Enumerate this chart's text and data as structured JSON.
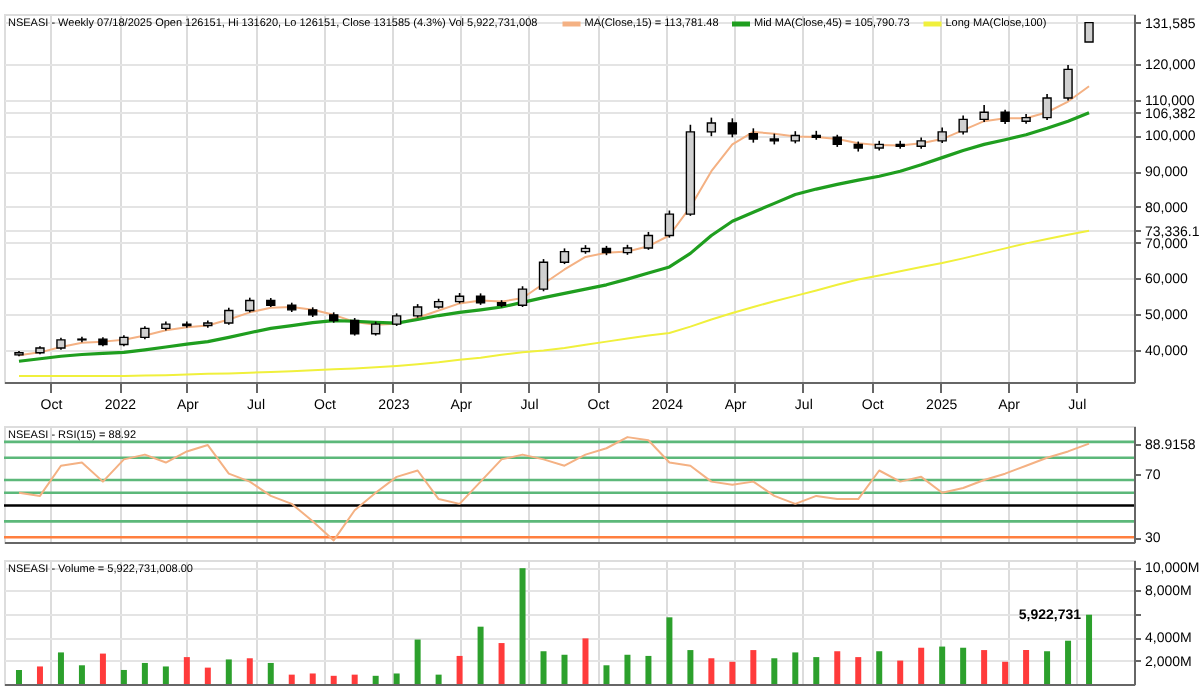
{
  "chart_data": [
    {
      "type": "candlestick",
      "title": "NSEASI - Weekly 07/18/2025 Open 126151, Hi 131620, Lo 126151, Close 131585 (4.3%) Vol 5,922,731,008",
      "x": [
        "2021-08-20",
        "2021-09-17",
        "2021-10-15",
        "2021-11-12",
        "2021-12-10",
        "2022-01-07",
        "2022-02-04",
        "2022-03-04",
        "2022-04-01",
        "2022-04-29",
        "2022-05-27",
        "2022-06-24",
        "2022-07-22",
        "2022-08-19",
        "2022-09-16",
        "2022-10-14",
        "2022-11-11",
        "2022-12-09",
        "2023-01-06",
        "2023-02-03",
        "2023-03-03",
        "2023-03-31",
        "2023-04-28",
        "2023-05-26",
        "2023-06-23",
        "2023-07-21",
        "2023-08-18",
        "2023-09-15",
        "2023-10-13",
        "2023-11-10",
        "2023-12-08",
        "2024-01-05",
        "2024-02-02",
        "2024-03-01",
        "2024-03-29",
        "2024-04-26",
        "2024-05-24",
        "2024-06-21",
        "2024-07-19",
        "2024-08-16",
        "2024-09-13",
        "2024-10-11",
        "2024-11-08",
        "2024-12-06",
        "2025-01-03",
        "2025-01-31",
        "2025-02-28",
        "2025-03-28",
        "2025-04-25",
        "2025-05-23",
        "2025-06-20",
        "2025-07-18"
      ],
      "ohlc": [
        [
          38600,
          39700,
          38200,
          39200
        ],
        [
          39200,
          41000,
          38800,
          40500
        ],
        [
          40500,
          43400,
          40000,
          42800
        ],
        [
          42800,
          43700,
          42100,
          43000
        ],
        [
          43000,
          43500,
          41000,
          41500
        ],
        [
          41500,
          44100,
          41000,
          43500
        ],
        [
          43500,
          46600,
          43000,
          46000
        ],
        [
          46000,
          47900,
          45400,
          47200
        ],
        [
          47200,
          47900,
          46200,
          46800
        ],
        [
          46800,
          48200,
          46200,
          47500
        ],
        [
          47500,
          51800,
          47000,
          51000
        ],
        [
          51000,
          54600,
          50500,
          53800
        ],
        [
          53800,
          54500,
          52000,
          52500
        ],
        [
          52500,
          53200,
          50600,
          51200
        ],
        [
          51200,
          51900,
          49200,
          49800
        ],
        [
          49800,
          50500,
          47600,
          48200
        ],
        [
          48200,
          48900,
          44000,
          44500
        ],
        [
          44500,
          47900,
          44000,
          47200
        ],
        [
          47200,
          50200,
          46700,
          49500
        ],
        [
          49500,
          52800,
          49000,
          52000
        ],
        [
          52000,
          54300,
          51500,
          53500
        ],
        [
          53500,
          55900,
          53000,
          55000
        ],
        [
          55000,
          55800,
          52600,
          53200
        ],
        [
          53200,
          53900,
          51900,
          52500
        ],
        [
          52500,
          57800,
          52000,
          57000
        ],
        [
          57000,
          65400,
          56400,
          64500
        ],
        [
          64500,
          68400,
          64000,
          67500
        ],
        [
          67500,
          69300,
          66900,
          68400
        ],
        [
          68400,
          69100,
          66500,
          67200
        ],
        [
          67200,
          69400,
          66600,
          68500
        ],
        [
          68500,
          73000,
          68000,
          72000
        ],
        [
          72000,
          79000,
          71400,
          78000
        ],
        [
          78000,
          103000,
          77500,
          101000
        ],
        [
          101000,
          105000,
          99800,
          103500
        ],
        [
          103500,
          104800,
          99500,
          100500
        ],
        [
          100500,
          102000,
          98000,
          99000
        ],
        [
          99000,
          100500,
          97500,
          98500
        ],
        [
          98500,
          101200,
          97800,
          100000
        ],
        [
          100000,
          101300,
          98800,
          99500
        ],
        [
          99500,
          100200,
          96800,
          97500
        ],
        [
          97500,
          98300,
          95500,
          96500
        ],
        [
          96500,
          98500,
          95800,
          97500
        ],
        [
          97500,
          98500,
          96300,
          97000
        ],
        [
          97000,
          99400,
          96300,
          98500
        ],
        [
          98500,
          102200,
          97900,
          101000
        ],
        [
          101000,
          105600,
          100300,
          104500
        ],
        [
          104500,
          108500,
          103800,
          106500
        ],
        [
          106500,
          107200,
          103200,
          104000
        ],
        [
          104000,
          106000,
          103300,
          105000
        ],
        [
          105000,
          111600,
          104300,
          110500
        ],
        [
          110500,
          119700,
          109800,
          118500
        ],
        [
          126151,
          131620,
          126151,
          131585
        ]
      ],
      "series": [
        {
          "name": "MA(Close,15) = 113,781.48",
          "type": "line",
          "color": "#f4b183",
          "values": [
            38500,
            39300,
            40800,
            42000,
            42300,
            42800,
            44000,
            45500,
            46300,
            46800,
            48500,
            50500,
            51800,
            52000,
            51200,
            49800,
            47800,
            47000,
            47300,
            49000,
            51000,
            53000,
            53800,
            53500,
            54500,
            58500,
            62500,
            66000,
            67200,
            67500,
            69000,
            72000,
            80000,
            90000,
            97500,
            101000,
            100500,
            99700,
            99600,
            99000,
            97800,
            97300,
            97200,
            97800,
            99000,
            101500,
            104000,
            104800,
            104800,
            106500,
            109500,
            113781.48
          ]
        },
        {
          "name": "Mid MA(Close,45) = 105,790.73",
          "type": "line",
          "color": "#1f9e1f",
          "values": [
            36800,
            37500,
            38200,
            38700,
            39000,
            39300,
            40000,
            40800,
            41600,
            42300,
            43500,
            44800,
            46000,
            46800,
            47600,
            48200,
            48000,
            47700,
            47500,
            48500,
            49600,
            50500,
            51200,
            52000,
            53300,
            54600,
            55800,
            57000,
            58200,
            59800,
            61500,
            63200,
            67000,
            72000,
            76000,
            78500,
            81000,
            83500,
            85000,
            86300,
            87500,
            88600,
            90000,
            91800,
            93800,
            95800,
            97500,
            98800,
            100200,
            102000,
            104000,
            106382
          ]
        },
        {
          "name": "Long MA(Close,100)",
          "type": "line",
          "color": "#f0f03c",
          "values": [
            32700,
            32700,
            32700,
            32700,
            32700,
            32700,
            32800,
            32900,
            33100,
            33300,
            33400,
            33600,
            33800,
            34000,
            34300,
            34600,
            34800,
            35100,
            35500,
            36000,
            36500,
            37200,
            37800,
            38600,
            39300,
            39800,
            40500,
            41400,
            42300,
            43200,
            44000,
            44700,
            46500,
            48500,
            50300,
            52000,
            53600,
            55100,
            56600,
            58200,
            59700,
            60800,
            62000,
            63200,
            64300,
            65600,
            67000,
            68400,
            69800,
            71000,
            72200,
            73336.1
          ]
        }
      ],
      "xlim": [
        "2021-07-31",
        "2025-09-16"
      ],
      "xticks": [
        {
          "value": "2021-10-01",
          "label": "Oct"
        },
        {
          "value": "2022-01-01",
          "label": "2022"
        },
        {
          "value": "2022-04-01",
          "label": "Apr"
        },
        {
          "value": "2022-07-01",
          "label": "Jul"
        },
        {
          "value": "2022-10-01",
          "label": "Oct"
        },
        {
          "value": "2023-01-01",
          "label": "2023"
        },
        {
          "value": "2023-04-01",
          "label": "Apr"
        },
        {
          "value": "2023-07-01",
          "label": "Jul"
        },
        {
          "value": "2023-10-01",
          "label": "Oct"
        },
        {
          "value": "2024-01-01",
          "label": "2024"
        },
        {
          "value": "2024-04-01",
          "label": "Apr"
        },
        {
          "value": "2024-07-01",
          "label": "Jul"
        },
        {
          "value": "2024-10-01",
          "label": "Oct"
        },
        {
          "value": "2025-01-01",
          "label": "2025"
        },
        {
          "value": "2025-04-01",
          "label": "Apr"
        },
        {
          "value": "2025-07-01",
          "label": "Jul"
        }
      ],
      "ylim": [
        31000,
        134000
      ],
      "yticks": [
        {
          "value": 40000,
          "label": "40,000"
        },
        {
          "value": 50000,
          "label": "50,000"
        },
        {
          "value": 60000,
          "label": "60,000"
        },
        {
          "value": 70000,
          "label": "70,000"
        },
        {
          "value": 73336.1,
          "label": "73,336.1"
        },
        {
          "value": 80000,
          "label": "80,000"
        },
        {
          "value": 90000,
          "label": "90,000"
        },
        {
          "value": 100000,
          "label": "100,000"
        },
        {
          "value": 106382,
          "label": "106,382"
        },
        {
          "value": 110000,
          "label": "110,000"
        },
        {
          "value": 120000,
          "label": "120,000"
        },
        {
          "value": 131585,
          "label": "131,585"
        }
      ],
      "grid": true,
      "legend": "top"
    },
    {
      "type": "line",
      "title": "NSEASI - RSI(15) = 88.92",
      "x": [
        "2021-08-20",
        "2021-09-17",
        "2021-10-15",
        "2021-11-12",
        "2021-12-10",
        "2022-01-07",
        "2022-02-04",
        "2022-03-04",
        "2022-04-01",
        "2022-04-29",
        "2022-05-27",
        "2022-06-24",
        "2022-07-22",
        "2022-08-19",
        "2022-09-16",
        "2022-10-14",
        "2022-11-11",
        "2022-12-09",
        "2023-01-06",
        "2023-02-03",
        "2023-03-03",
        "2023-03-31",
        "2023-04-28",
        "2023-05-26",
        "2023-06-23",
        "2023-07-21",
        "2023-08-18",
        "2023-09-15",
        "2023-10-13",
        "2023-11-10",
        "2023-12-08",
        "2024-01-05",
        "2024-02-02",
        "2024-03-01",
        "2024-03-29",
        "2024-04-26",
        "2024-05-24",
        "2024-06-21",
        "2024-07-19",
        "2024-08-16",
        "2024-09-13",
        "2024-10-11",
        "2024-11-08",
        "2024-12-06",
        "2025-01-03",
        "2025-01-31",
        "2025-02-28",
        "2025-03-28",
        "2025-04-25",
        "2025-05-23",
        "2025-06-20",
        "2025-07-18"
      ],
      "series": [
        {
          "color": "#f4b183",
          "values": [
            58,
            56,
            75,
            77,
            65,
            79,
            82,
            77,
            84,
            88,
            70,
            65,
            56,
            51,
            40,
            28,
            47,
            58,
            68,
            72,
            54,
            51,
            65,
            79,
            82,
            79,
            75,
            82,
            86,
            93,
            91,
            77,
            75,
            65,
            63,
            65,
            56,
            51,
            56,
            54,
            54,
            72,
            65,
            68,
            58,
            61,
            66,
            70,
            75,
            80,
            84,
            88.9158
          ]
        }
      ],
      "xlim": [
        "2021-07-31",
        "2025-09-16"
      ],
      "xticks": [
        {
          "value": "2021-10-01",
          "label": null
        },
        {
          "value": "2022-01-01",
          "label": null
        },
        {
          "value": "2022-04-01",
          "label": null
        },
        {
          "value": "2022-07-01",
          "label": null
        },
        {
          "value": "2022-10-01",
          "label": null
        },
        {
          "value": "2023-01-01",
          "label": null
        },
        {
          "value": "2023-04-01",
          "label": null
        },
        {
          "value": "2023-07-01",
          "label": null
        },
        {
          "value": "2023-10-01",
          "label": null
        },
        {
          "value": "2024-01-01",
          "label": null
        },
        {
          "value": "2024-04-01",
          "label": null
        },
        {
          "value": "2024-07-01",
          "label": null
        },
        {
          "value": "2024-10-01",
          "label": null
        },
        {
          "value": "2025-01-01",
          "label": null
        },
        {
          "value": "2025-04-01",
          "label": null
        },
        {
          "value": "2025-07-01",
          "label": null
        }
      ],
      "ylim": [
        27,
        100
      ],
      "yticks": [
        30,
        70,
        {
          "value": 88.9158,
          "label": "88.9158"
        }
      ],
      "grid": "x",
      "tick_labels": "y",
      "ref_lines": [
        {
          "axis": "y",
          "value": 90,
          "color": "#5cb87a"
        },
        {
          "axis": "y",
          "value": 80,
          "color": "#5cb87a"
        },
        {
          "axis": "y",
          "value": 66,
          "color": "#5cb87a"
        },
        {
          "axis": "y",
          "value": 58,
          "color": "#5cb87a"
        },
        {
          "axis": "y",
          "value": 50,
          "color": "#000000"
        },
        {
          "axis": "y",
          "value": 40,
          "color": "#5cb87a"
        },
        {
          "axis": "y",
          "value": 30,
          "color": "#ff7f3f"
        }
      ]
    },
    {
      "type": "bar",
      "title": "NSEASI - Volume = 5,922,731,008.00",
      "x": [
        "2021-08-20",
        "2021-09-17",
        "2021-10-15",
        "2021-11-12",
        "2021-12-10",
        "2022-01-07",
        "2022-02-04",
        "2022-03-04",
        "2022-04-01",
        "2022-04-29",
        "2022-05-27",
        "2022-06-24",
        "2022-07-22",
        "2022-08-19",
        "2022-09-16",
        "2022-10-14",
        "2022-11-11",
        "2022-12-09",
        "2023-01-06",
        "2023-02-03",
        "2023-03-03",
        "2023-03-31",
        "2023-04-28",
        "2023-05-26",
        "2023-06-23",
        "2023-07-21",
        "2023-08-18",
        "2023-09-15",
        "2023-10-13",
        "2023-11-10",
        "2023-12-08",
        "2024-01-05",
        "2024-02-02",
        "2024-03-01",
        "2024-03-29",
        "2024-04-26",
        "2024-05-24",
        "2024-06-21",
        "2024-07-19",
        "2024-08-16",
        "2024-09-13",
        "2024-10-11",
        "2024-11-08",
        "2024-12-06",
        "2025-01-03",
        "2025-01-31",
        "2025-02-28",
        "2025-03-28",
        "2025-04-25",
        "2025-05-23",
        "2025-06-20",
        "2025-07-18"
      ],
      "values": [
        1200,
        1500,
        2700,
        1600,
        2600,
        1200,
        1800,
        1500,
        2300,
        1400,
        2100,
        2200,
        1800,
        800,
        900,
        700,
        800,
        700,
        900,
        3800,
        800,
        2400,
        4900,
        3500,
        9900,
        2800,
        2500,
        3900,
        1600,
        2500,
        2400,
        5700,
        2900,
        2200,
        1900,
        2900,
        2200,
        2700,
        2300,
        2800,
        2300,
        2800,
        2000,
        3100,
        3200,
        3100,
        2900,
        1900,
        2900,
        2800,
        3700,
        5922.731
      ],
      "colors": [
        "#2ca02c",
        "#ff3b3b",
        "#2ca02c",
        "#2ca02c",
        "#ff3b3b",
        "#2ca02c",
        "#2ca02c",
        "#2ca02c",
        "#ff3b3b",
        "#ff3b3b",
        "#2ca02c",
        "#ff3b3b",
        "#2ca02c",
        "#ff3b3b",
        "#ff3b3b",
        "#ff3b3b",
        "#ff3b3b",
        "#2ca02c",
        "#2ca02c",
        "#2ca02c",
        "#2ca02c",
        "#ff3b3b",
        "#2ca02c",
        "#ff3b3b",
        "#2ca02c",
        "#2ca02c",
        "#2ca02c",
        "#ff3b3b",
        "#2ca02c",
        "#2ca02c",
        "#2ca02c",
        "#2ca02c",
        "#2ca02c",
        "#ff3b3b",
        "#ff3b3b",
        "#ff3b3b",
        "#2ca02c",
        "#2ca02c",
        "#2ca02c",
        "#ff3b3b",
        "#ff3b3b",
        "#2ca02c",
        "#ff3b3b",
        "#ff3b3b",
        "#2ca02c",
        "#2ca02c",
        "#ff3b3b",
        "#ff3b3b",
        "#ff3b3b",
        "#2ca02c",
        "#2ca02c",
        "#2ca02c"
      ],
      "xlim": [
        "2021-07-31",
        "2025-09-16"
      ],
      "xticks": [
        {
          "value": "2021-10-01",
          "label": null
        },
        {
          "value": "2022-01-01",
          "label": null
        },
        {
          "value": "2022-04-01",
          "label": null
        },
        {
          "value": "2022-07-01",
          "label": null
        },
        {
          "value": "2022-10-01",
          "label": null
        },
        {
          "value": "2023-01-01",
          "label": null
        },
        {
          "value": "2023-04-01",
          "label": null
        },
        {
          "value": "2023-07-01",
          "label": null
        },
        {
          "value": "2023-10-01",
          "label": null
        },
        {
          "value": "2024-01-01",
          "label": null
        },
        {
          "value": "2024-04-01",
          "label": null
        },
        {
          "value": "2024-07-01",
          "label": null
        },
        {
          "value": "2024-10-01",
          "label": null
        },
        {
          "value": "2025-01-01",
          "label": null
        },
        {
          "value": "2025-04-01",
          "label": null
        },
        {
          "value": "2025-07-01",
          "label": null
        }
      ],
      "ylim": [
        0,
        10600
      ],
      "yticks": [
        {
          "value": 2000,
          "label": "2,000M"
        },
        {
          "value": 4000,
          "label": "4,000M"
        },
        {
          "value": 6000,
          "label": null
        },
        {
          "value": 8000,
          "label": "8,000M"
        },
        {
          "value": 10000,
          "label": "10,000M"
        }
      ],
      "grid": true,
      "tick_labels": "y",
      "annotations": [
        {
          "text": "5,922,731",
          "x": "2025-07-18",
          "y": 5922.731
        }
      ]
    }
  ]
}
